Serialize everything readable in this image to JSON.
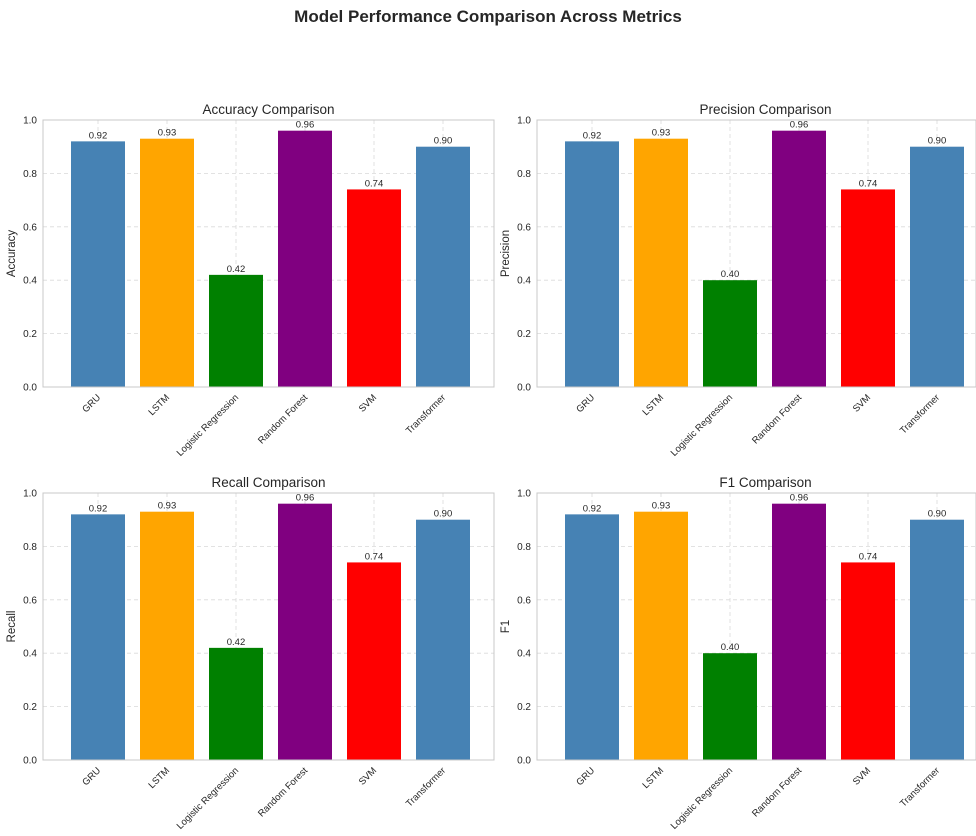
{
  "title": "Model Performance Comparison Across Metrics",
  "chart_data": [
    {
      "type": "bar",
      "title": "Accuracy Comparison",
      "xlabel": "",
      "ylabel": "Accuracy",
      "categories": [
        "GRU",
        "LSTM",
        "Logistic Regression",
        "Random Forest",
        "SVM",
        "Transformer"
      ],
      "values": [
        0.92,
        0.93,
        0.42,
        0.96,
        0.74,
        0.9
      ],
      "value_labels": [
        "0.92",
        "0.93",
        "0.42",
        "0.96",
        "0.74",
        "0.90"
      ],
      "colors": [
        "#4682b4",
        "#ffa500",
        "#008000",
        "#800080",
        "#ff0000",
        "#4682b4"
      ],
      "ylim": [
        0,
        1.0
      ],
      "yticks": [
        "0.0",
        "0.2",
        "0.4",
        "0.6",
        "0.8",
        "1.0"
      ],
      "grid": true
    },
    {
      "type": "bar",
      "title": "Precision Comparison",
      "xlabel": "",
      "ylabel": "Precision",
      "categories": [
        "GRU",
        "LSTM",
        "Logistic Regression",
        "Random Forest",
        "SVM",
        "Transformer"
      ],
      "values": [
        0.92,
        0.93,
        0.4,
        0.96,
        0.74,
        0.9
      ],
      "value_labels": [
        "0.92",
        "0.93",
        "0.40",
        "0.96",
        "0.74",
        "0.90"
      ],
      "colors": [
        "#4682b4",
        "#ffa500",
        "#008000",
        "#800080",
        "#ff0000",
        "#4682b4"
      ],
      "ylim": [
        0,
        1.0
      ],
      "yticks": [
        "0.0",
        "0.2",
        "0.4",
        "0.6",
        "0.8",
        "1.0"
      ],
      "grid": true
    },
    {
      "type": "bar",
      "title": "Recall Comparison",
      "xlabel": "",
      "ylabel": "Recall",
      "categories": [
        "GRU",
        "LSTM",
        "Logistic Regression",
        "Random Forest",
        "SVM",
        "Transformer"
      ],
      "values": [
        0.92,
        0.93,
        0.42,
        0.96,
        0.74,
        0.9
      ],
      "value_labels": [
        "0.92",
        "0.93",
        "0.42",
        "0.96",
        "0.74",
        "0.90"
      ],
      "colors": [
        "#4682b4",
        "#ffa500",
        "#008000",
        "#800080",
        "#ff0000",
        "#4682b4"
      ],
      "ylim": [
        0,
        1.0
      ],
      "yticks": [
        "0.0",
        "0.2",
        "0.4",
        "0.6",
        "0.8",
        "1.0"
      ],
      "grid": true
    },
    {
      "type": "bar",
      "title": "F1 Comparison",
      "xlabel": "",
      "ylabel": "F1",
      "categories": [
        "GRU",
        "LSTM",
        "Logistic Regression",
        "Random Forest",
        "SVM",
        "Transformer"
      ],
      "values": [
        0.92,
        0.93,
        0.4,
        0.96,
        0.74,
        0.9
      ],
      "value_labels": [
        "0.92",
        "0.93",
        "0.40",
        "0.96",
        "0.74",
        "0.90"
      ],
      "colors": [
        "#4682b4",
        "#ffa500",
        "#008000",
        "#800080",
        "#ff0000",
        "#4682b4"
      ],
      "ylim": [
        0,
        1.0
      ],
      "yticks": [
        "0.0",
        "0.2",
        "0.4",
        "0.6",
        "0.8",
        "1.0"
      ],
      "grid": true
    }
  ]
}
